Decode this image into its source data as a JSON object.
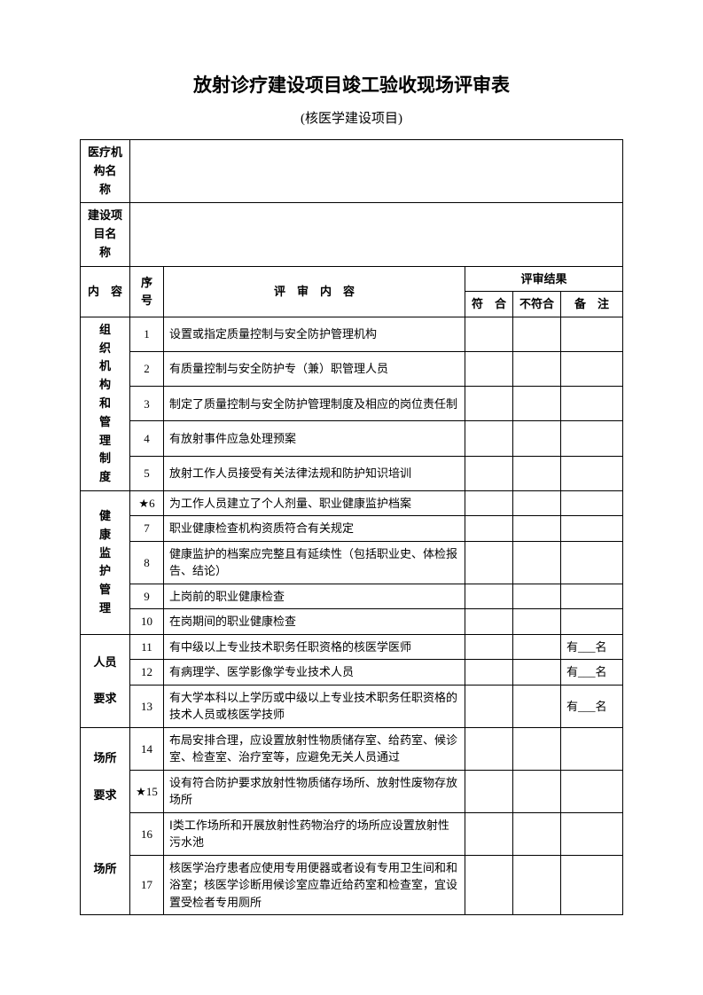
{
  "title": "放射诊疗建设项目竣工验收现场评审表",
  "subtitle": "(核医学建设项目)",
  "header_labels": {
    "org_name": "医疗机构名　　称",
    "project_name": "建设项目名　　称",
    "content_col": "内　容",
    "seq_col": "序号",
    "review_content": "评　审　内　容",
    "review_result": "评审结果",
    "conform": "符　合",
    "nonconform": "不符合",
    "note": "备　注"
  },
  "sections": [
    {
      "category": "组织机构和管理制度",
      "rows": [
        {
          "seq": "1",
          "content": "设置或指定质量控制与安全防护管理机构",
          "note": ""
        },
        {
          "seq": "2",
          "content": "有质量控制与安全防护专（兼）职管理人员",
          "note": ""
        },
        {
          "seq": "3",
          "content": "制定了质量控制与安全防护管理制度及相应的岗位责任制",
          "note": ""
        },
        {
          "seq": "4",
          "content": "有放射事件应急处理预案",
          "note": ""
        },
        {
          "seq": "5",
          "content": "放射工作人员接受有关法律法规和防护知识培训",
          "note": ""
        }
      ]
    },
    {
      "category": "健康监护管理",
      "rows": [
        {
          "seq": "★6",
          "content": "为工作人员建立了个人剂量、职业健康监护档案",
          "note": ""
        },
        {
          "seq": "7",
          "content": "职业健康检查机构资质符合有关规定",
          "note": ""
        },
        {
          "seq": "8",
          "content": "健康监护的档案应完整且有延续性（包括职业史、体检报告、结论）",
          "note": ""
        },
        {
          "seq": "9",
          "content": "上岗前的职业健康检查",
          "note": ""
        },
        {
          "seq": "10",
          "content": "在岗期间的职业健康检查",
          "note": ""
        }
      ]
    },
    {
      "category": "人员\n\n要求",
      "rows": [
        {
          "seq": "11",
          "content": "有中级以上专业技术职务任职资格的核医学医师",
          "note": "有___名"
        },
        {
          "seq": "12",
          "content": "有病理学、医学影像学专业技术人员",
          "note": "有___名"
        },
        {
          "seq": "13",
          "content": "有大学本科以上学历或中级以上专业技术职务任职资格的技术人员或核医学技师",
          "note": "有___名"
        }
      ]
    },
    {
      "category": "场所\n\n要求\n\n\n\n场所",
      "rows": [
        {
          "seq": "14",
          "content": "布局安排合理，应设置放射性物质储存室、给药室、候诊室、检查室、治疗室等，应避免无关人员通过",
          "note": ""
        },
        {
          "seq": "★15",
          "content": "设有符合防护要求放射性物质储存场所、放射性废物存放场所",
          "note": ""
        },
        {
          "seq": "16",
          "content": "Ⅰ类工作场所和开展放射性药物治疗的场所应设置放射性污水池",
          "note": ""
        },
        {
          "seq": "17",
          "content": "核医学治疗患者应使用专用便器或者设有专用卫生间和和浴室；核医学诊断用候诊室应靠近给药室和检查室，宜设置受检者专用厕所",
          "note": ""
        }
      ]
    }
  ]
}
